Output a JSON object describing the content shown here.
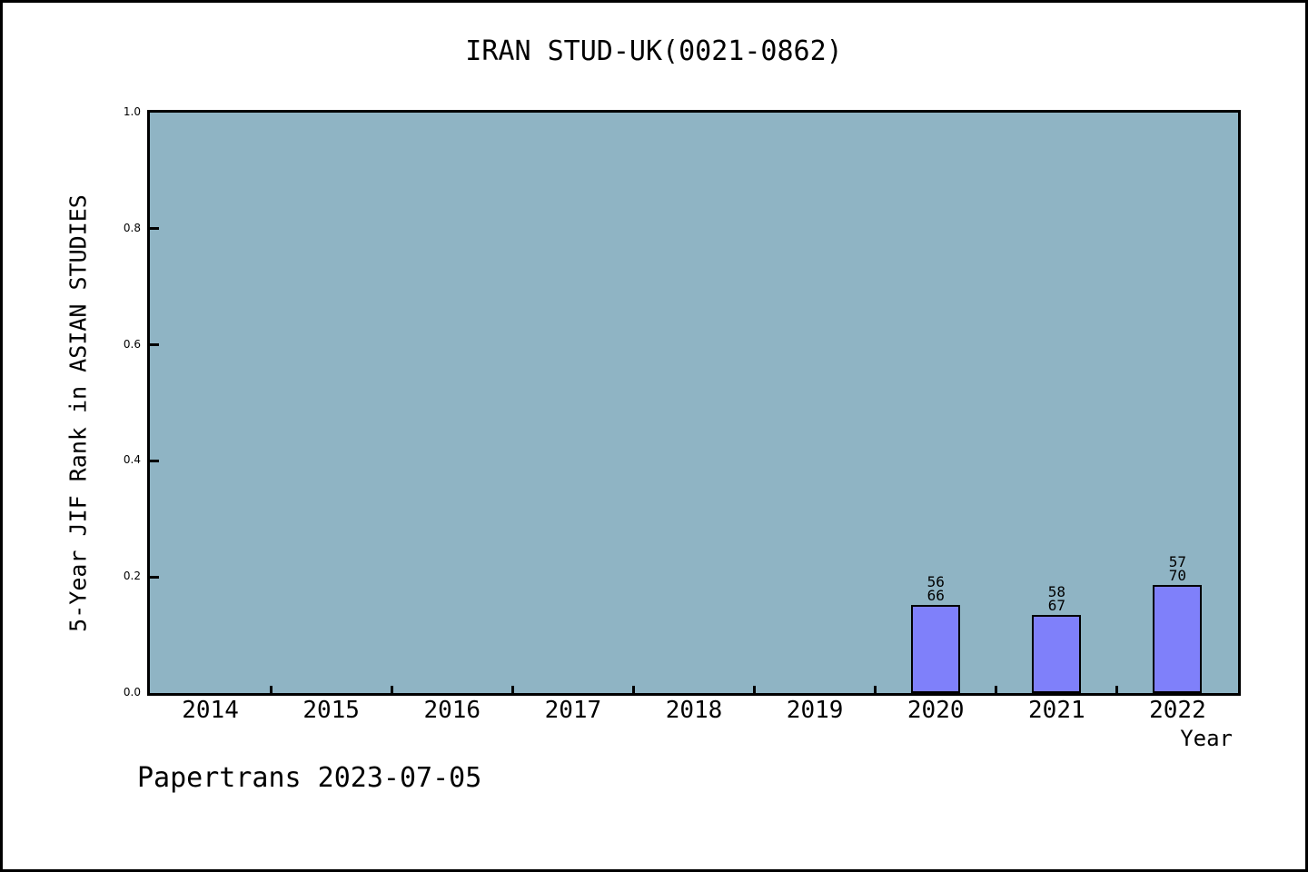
{
  "footer": "Papertrans 2023-07-05",
  "chart_data": {
    "type": "bar",
    "title": "IRAN STUD-UK(0021-0862)",
    "xlabel": "Year",
    "ylabel": "5-Year JIF Rank in ASIAN STUDIES",
    "categories": [
      "2014",
      "2015",
      "2016",
      "2017",
      "2018",
      "2019",
      "2020",
      "2021",
      "2022"
    ],
    "y_ticks": [
      "0.0",
      "0.2",
      "0.4",
      "0.6",
      "0.8",
      "1.0"
    ],
    "ylim": [
      0.0,
      1.0
    ],
    "grid": false,
    "legend": false,
    "bars": [
      {
        "category": "2020",
        "rank": "56",
        "total": "66",
        "value": 0.1515
      },
      {
        "category": "2021",
        "rank": "58",
        "total": "67",
        "value": 0.1343
      },
      {
        "category": "2022",
        "rank": "57",
        "total": "70",
        "value": 0.1857
      }
    ],
    "colors": {
      "plot_bg": "#8FB4C4",
      "bar_fill": "#7F80FA",
      "axis": "#000000",
      "text": "#000000",
      "page_bg": "#FFFFFF"
    }
  }
}
